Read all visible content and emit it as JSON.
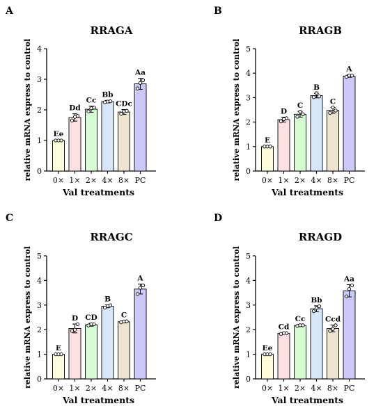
{
  "chart_data": [
    {
      "type": "bar",
      "panel": "A",
      "title": "RRAGA",
      "xlabel": "Val treatments",
      "ylabel": "relative mRNA express to control",
      "ylim": [
        0,
        4
      ],
      "yticks": [
        0,
        1,
        2,
        3,
        4
      ],
      "categories": [
        "0×",
        "1×",
        "2×",
        "4×",
        "8×",
        "PC"
      ],
      "values": [
        1.0,
        1.75,
        2.02,
        2.27,
        1.93,
        2.85
      ],
      "errors": [
        0.02,
        0.12,
        0.1,
        0.04,
        0.08,
        0.18
      ],
      "points": [
        [
          1.0,
          1.0,
          1.0
        ],
        [
          1.65,
          1.77,
          1.8
        ],
        [
          1.95,
          2.05,
          2.07
        ],
        [
          2.25,
          2.27,
          2.28
        ],
        [
          1.87,
          1.95,
          1.97
        ],
        [
          2.7,
          2.88,
          2.97
        ]
      ],
      "labels": [
        "Ee",
        "Dd",
        "Cc",
        "Bb",
        "CDc",
        "Aa"
      ]
    },
    {
      "type": "bar",
      "panel": "B",
      "title": "RRAGB",
      "xlabel": "Val treatments",
      "ylabel": "relative mRNA express to control",
      "ylim": [
        0,
        5
      ],
      "yticks": [
        0,
        1,
        2,
        3,
        4,
        5
      ],
      "categories": [
        "0×",
        "1×",
        "2×",
        "4×",
        "8×",
        "PC"
      ],
      "values": [
        1.0,
        2.1,
        2.32,
        3.08,
        2.48,
        3.88
      ],
      "errors": [
        0.02,
        0.1,
        0.12,
        0.09,
        0.12,
        0.05
      ],
      "points": [
        [
          1.0,
          1.0,
          1.0
        ],
        [
          2.03,
          2.12,
          2.16
        ],
        [
          2.22,
          2.42,
          2.32
        ],
        [
          3.02,
          3.18,
          3.05
        ],
        [
          2.38,
          2.6,
          2.47
        ],
        [
          3.85,
          3.9,
          3.9
        ]
      ],
      "labels": [
        "E",
        "D",
        "C",
        "B",
        "C",
        "A"
      ]
    },
    {
      "type": "bar",
      "panel": "C",
      "title": "RRAGC",
      "xlabel": "Val treatments",
      "ylabel": "relative mRNA express to control",
      "ylim": [
        0,
        5
      ],
      "yticks": [
        0,
        1,
        2,
        3,
        4,
        5
      ],
      "categories": [
        "0×",
        "1×",
        "2×",
        "4×",
        "8×",
        "PC"
      ],
      "values": [
        1.0,
        2.05,
        2.2,
        2.95,
        2.32,
        3.65
      ],
      "errors": [
        0.02,
        0.18,
        0.06,
        0.06,
        0.04,
        0.2
      ],
      "points": [
        [
          1.0,
          1.0,
          1.0
        ],
        [
          1.95,
          2.0,
          2.22
        ],
        [
          2.17,
          2.22,
          2.22
        ],
        [
          2.9,
          2.96,
          2.99
        ],
        [
          2.3,
          2.33,
          2.34
        ],
        [
          3.45,
          3.7,
          3.8
        ]
      ],
      "labels": [
        "E",
        "D",
        "CD",
        "B",
        "C",
        "A"
      ]
    },
    {
      "type": "bar",
      "panel": "D",
      "title": "RRAGD",
      "xlabel": "Val treatments",
      "ylabel": "relative mRNA express to control",
      "ylim": [
        0,
        5
      ],
      "yticks": [
        0,
        1,
        2,
        3,
        4,
        5
      ],
      "categories": [
        "0×",
        "1×",
        "2×",
        "4×",
        "8×",
        "PC"
      ],
      "values": [
        1.0,
        1.85,
        2.17,
        2.85,
        2.05,
        3.58
      ],
      "errors": [
        0.02,
        0.03,
        0.04,
        0.12,
        0.14,
        0.25
      ],
      "points": [
        [
          1.0,
          1.0,
          1.0
        ],
        [
          1.83,
          1.86,
          1.86
        ],
        [
          2.15,
          2.18,
          2.18
        ],
        [
          2.75,
          2.88,
          2.95
        ],
        [
          1.95,
          2.03,
          2.18
        ],
        [
          3.35,
          3.65,
          3.8
        ]
      ],
      "labels": [
        "Ee",
        "Cd",
        "Cc",
        "Bb",
        "Ccd",
        "Aa"
      ]
    }
  ],
  "colors": {
    "bar_fills": [
      "#fdfddb",
      "#fde0e2",
      "#d6fcd4",
      "#d6e6fb",
      "#ece4ce",
      "#c9c9fa"
    ],
    "outline": "#000000"
  }
}
